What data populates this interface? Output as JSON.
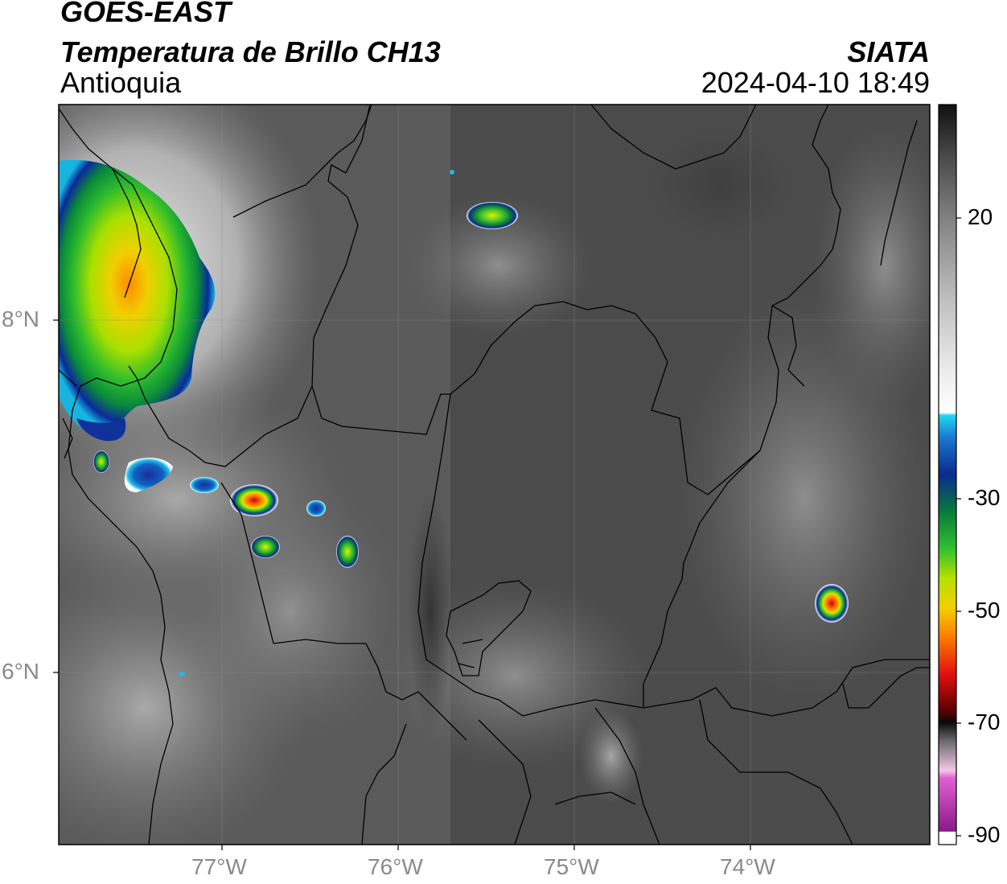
{
  "header": {
    "satellite": "GOES-EAST",
    "product": "Temperatura de Brillo CH13",
    "region": "Antioquia",
    "organization": "SIATA",
    "datetime": "2024-04-10 18:49"
  },
  "map": {
    "latitude_labels": [
      "8°N",
      "6°N"
    ],
    "longitude_labels": [
      "77°W",
      "76°W",
      "75°W",
      "74°W"
    ],
    "background_color": "#4d4d4d",
    "border_color": "#000000"
  },
  "colorbar": {
    "tick_labels": [
      "20",
      "-30",
      "-50",
      "-70",
      "-90"
    ],
    "range": [
      -90,
      30
    ]
  }
}
